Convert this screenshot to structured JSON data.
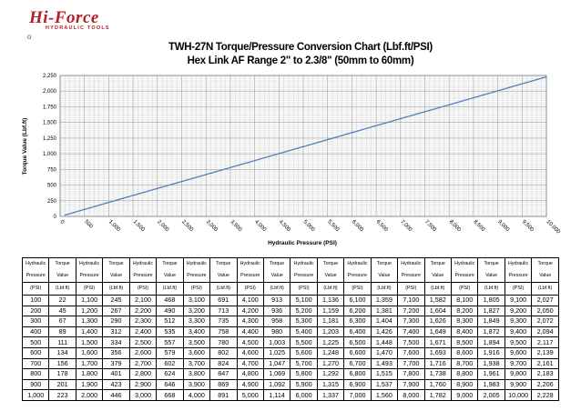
{
  "logo": {
    "main": "Hi-Force",
    "sub": "HYDRAULIC TOOLS"
  },
  "bullet": "o",
  "chart_data": {
    "type": "line",
    "title": "TWH-27N Torque/Pressure Conversion Chart (Lbf.ft/PSI)",
    "subtitle": "Hex Link AF Range 2\" to 2.3/8\" (50mm to 60mm)",
    "xlabel": "Hydraulic Pressure (PSI)",
    "ylabel": "Torque Value (Lbf.ft)",
    "xlim": [
      0,
      10000
    ],
    "ylim": [
      0,
      2250
    ],
    "grid": true,
    "legend": "none",
    "line_color": "#4f81bd",
    "x_ticks": [
      "0",
      "500",
      "1,000",
      "1,500",
      "2,000",
      "2,500",
      "3,000",
      "3,500",
      "4,000",
      "4,500",
      "5,000",
      "5,500",
      "6,000",
      "6,500",
      "7,000",
      "7,500",
      "8,000",
      "8,500",
      "9,000",
      "9,500",
      "10,000"
    ],
    "y_ticks": [
      "0",
      "250",
      "500",
      "750",
      "1,000",
      "1,250",
      "1,500",
      "1,750",
      "2,000",
      "2,250"
    ],
    "x": [
      100,
      1000,
      2000,
      3000,
      4000,
      5000,
      6000,
      7000,
      8000,
      9000,
      10000
    ],
    "y": [
      22,
      223,
      446,
      668,
      891,
      1114,
      1337,
      1560,
      1782,
      2005,
      2228
    ]
  },
  "table": {
    "header": [
      [
        "Hydraulic",
        "Torque"
      ],
      [
        "Pressure",
        "Value"
      ],
      [
        "(PSI)",
        "(Lbf.ft)"
      ]
    ],
    "rows": [
      [
        "100",
        "22",
        "1,100",
        "245",
        "2,100",
        "468",
        "3,100",
        "691",
        "4,100",
        "913",
        "5,100",
        "1,136",
        "6,100",
        "1,359",
        "7,100",
        "1,582",
        "8,100",
        "1,805",
        "9,100",
        "2,027"
      ],
      [
        "200",
        "45",
        "1,200",
        "267",
        "2,200",
        "490",
        "3,200",
        "713",
        "4,200",
        "936",
        "5,200",
        "1,159",
        "6,200",
        "1,381",
        "7,200",
        "1,604",
        "8,200",
        "1,827",
        "9,200",
        "2,050"
      ],
      [
        "300",
        "67",
        "1,300",
        "290",
        "2,300",
        "512",
        "3,300",
        "735",
        "4,300",
        "958",
        "5,300",
        "1,181",
        "6,300",
        "1,404",
        "7,300",
        "1,626",
        "8,300",
        "1,849",
        "9,300",
        "2,072"
      ],
      [
        "400",
        "89",
        "1,400",
        "312",
        "2,400",
        "535",
        "3,400",
        "758",
        "4,400",
        "980",
        "5,400",
        "1,203",
        "6,400",
        "1,426",
        "7,400",
        "1,649",
        "8,400",
        "1,872",
        "9,400",
        "2,094"
      ],
      [
        "500",
        "111",
        "1,500",
        "334",
        "2,500",
        "557",
        "3,500",
        "780",
        "4,500",
        "1,003",
        "5,500",
        "1,225",
        "6,500",
        "1,448",
        "7,500",
        "1,671",
        "8,500",
        "1,894",
        "9,500",
        "2,117"
      ],
      [
        "600",
        "134",
        "1,600",
        "356",
        "2,600",
        "579",
        "3,600",
        "802",
        "4,600",
        "1,025",
        "5,600",
        "1,248",
        "6,600",
        "1,470",
        "7,600",
        "1,693",
        "8,600",
        "1,916",
        "9,600",
        "2,139"
      ],
      [
        "700",
        "156",
        "1,700",
        "379",
        "2,700",
        "602",
        "3,700",
        "824",
        "4,700",
        "1,047",
        "5,700",
        "1,270",
        "6,700",
        "1,493",
        "7,700",
        "1,716",
        "8,700",
        "1,938",
        "9,700",
        "2,161"
      ],
      [
        "800",
        "178",
        "1,800",
        "401",
        "2,800",
        "624",
        "3,800",
        "847",
        "4,800",
        "1,069",
        "5,800",
        "1,292",
        "6,800",
        "1,515",
        "7,800",
        "1,738",
        "8,800",
        "1,961",
        "9,800",
        "2,183"
      ],
      [
        "900",
        "201",
        "1,900",
        "423",
        "2,900",
        "646",
        "3,900",
        "869",
        "4,900",
        "1,092",
        "5,900",
        "1,315",
        "6,900",
        "1,537",
        "7,900",
        "1,760",
        "8,900",
        "1,983",
        "9,900",
        "2,206"
      ],
      [
        "1,000",
        "223",
        "2,000",
        "446",
        "3,000",
        "668",
        "4,000",
        "891",
        "5,000",
        "1,114",
        "6,000",
        "1,337",
        "7,000",
        "1,560",
        "8,000",
        "1,782",
        "9,000",
        "2,005",
        "10,000",
        "2,228"
      ]
    ]
  }
}
